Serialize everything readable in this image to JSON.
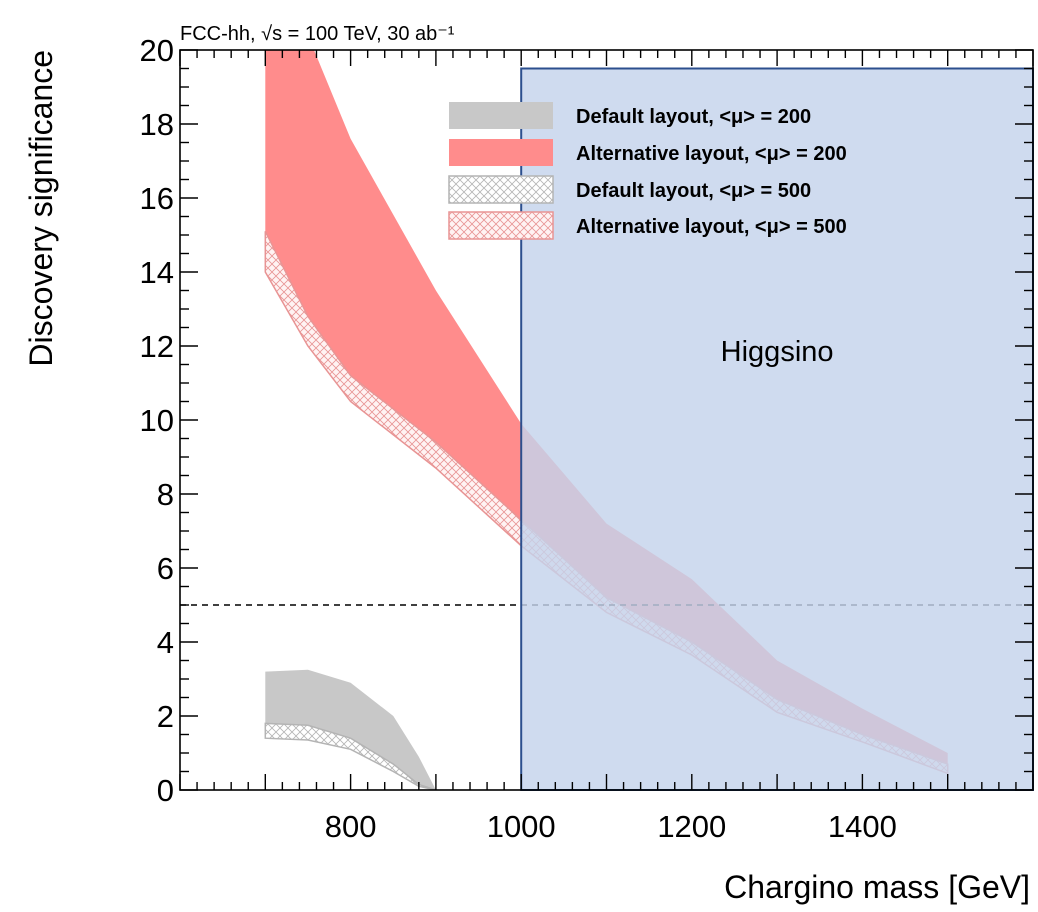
{
  "chart_data": {
    "type": "area",
    "header": "FCC-hh, √s = 100 TeV, 30 ab⁻¹",
    "xlabel": "Chargino mass [GeV]",
    "ylabel": "Discovery significance",
    "xlim": [
      600,
      1600
    ],
    "ylim": [
      0,
      20
    ],
    "x_ticks": [
      800,
      1000,
      1200,
      1400
    ],
    "y_ticks": [
      0,
      2,
      4,
      6,
      8,
      10,
      12,
      14,
      16,
      18,
      20
    ],
    "reference_line": {
      "y": 5,
      "style": "dashed"
    },
    "highlight_region": {
      "x_from": 1000,
      "x_to": 1600,
      "label": "Higgsino",
      "color": "#c5d3ec"
    },
    "series": [
      {
        "name": "Default layout, <μ> = 200",
        "style": "solid",
        "color": "#c8c8c8",
        "x": [
          700,
          750,
          800,
          850,
          880,
          900
        ],
        "upper": [
          3.2,
          3.25,
          2.9,
          2.0,
          0.9,
          0.0
        ],
        "lower": [
          1.8,
          1.75,
          1.4,
          0.7,
          0.15,
          0.0
        ]
      },
      {
        "name": "Alternative layout, <μ> = 200",
        "style": "solid",
        "color": "#ff8c8c",
        "x": [
          700,
          750,
          800,
          900,
          1000,
          1100,
          1200,
          1300,
          1400,
          1500
        ],
        "upper": [
          20,
          20.4,
          17.6,
          13.5,
          9.9,
          7.2,
          5.7,
          3.5,
          2.2,
          1.0
        ],
        "lower": [
          15.1,
          12.5,
          10.9,
          8.8,
          6.6,
          4.9,
          3.7,
          2.15,
          1.35,
          0.45
        ]
      },
      {
        "name": "Default layout, <μ> = 500",
        "style": "hatched",
        "color": "#b4b4b4",
        "x": [
          700,
          750,
          800,
          850,
          880,
          900
        ],
        "upper": [
          1.8,
          1.75,
          1.4,
          0.7,
          0.15,
          0.0
        ],
        "lower": [
          1.4,
          1.35,
          1.1,
          0.5,
          0.1,
          0.0
        ]
      },
      {
        "name": "Alternative layout, <μ> = 500",
        "style": "hatched",
        "color": "#e89494",
        "x": [
          700,
          750,
          800,
          900,
          1000,
          1100,
          1200,
          1300,
          1400,
          1500
        ],
        "upper": [
          15.1,
          12.8,
          11.2,
          9.4,
          7.3,
          5.2,
          4.0,
          2.45,
          1.5,
          0.7
        ],
        "lower": [
          14.0,
          12.0,
          10.5,
          8.7,
          6.6,
          4.8,
          3.65,
          2.1,
          1.3,
          0.45
        ]
      }
    ]
  }
}
